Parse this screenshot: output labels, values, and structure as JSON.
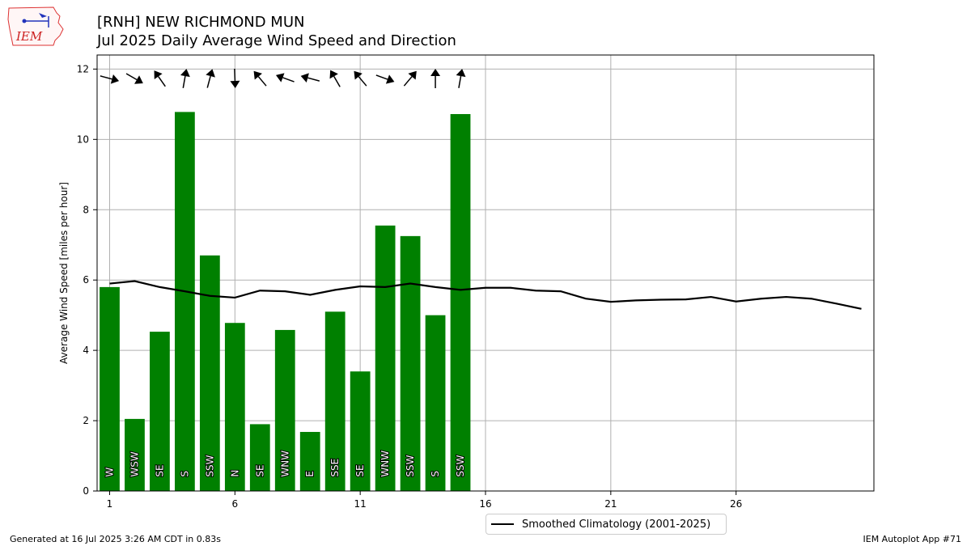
{
  "header": {
    "title_line1": "[RNH] NEW RICHMOND MUN",
    "title_line2": "Jul 2025 Daily Average Wind Speed and Direction"
  },
  "logo": {
    "text": "IEM"
  },
  "footer": {
    "left": "Generated at 16 Jul 2025 3:26 AM CDT in 0.83s",
    "right": "IEM Autoplot App #71"
  },
  "legend": {
    "climatology_label": "Smoothed Climatology (2001-2025)"
  },
  "colors": {
    "bar": "#008000",
    "line": "#000000",
    "grid": "#b0b0b0",
    "arrow": "#000000"
  },
  "chart_data": {
    "type": "bar",
    "x": [
      1,
      2,
      3,
      4,
      5,
      6,
      7,
      8,
      9,
      10,
      11,
      12,
      13,
      14,
      15
    ],
    "values": [
      5.8,
      2.05,
      4.53,
      10.78,
      6.7,
      4.78,
      1.9,
      4.58,
      1.68,
      5.1,
      3.4,
      7.55,
      7.25,
      5.0,
      10.72
    ],
    "direction_labels": [
      "W",
      "WSW",
      "SE",
      "S",
      "SSW",
      "N",
      "SE",
      "WNW",
      "E",
      "SSE",
      "SE",
      "WNW",
      "SSW",
      "S",
      "SSW"
    ],
    "arrow_angles_deg": [
      -15,
      -30,
      125,
      80,
      75,
      -88,
      130,
      160,
      165,
      120,
      130,
      -20,
      50,
      90,
      80
    ],
    "climatology": {
      "name": "Smoothed Climatology (2001-2025)",
      "x": [
        1,
        2,
        3,
        4,
        5,
        6,
        7,
        8,
        9,
        10,
        11,
        12,
        13,
        14,
        15,
        16,
        17,
        18,
        19,
        20,
        21,
        22,
        23,
        24,
        25,
        26,
        27,
        28,
        29,
        30,
        31
      ],
      "values": [
        5.9,
        5.97,
        5.8,
        5.68,
        5.55,
        5.5,
        5.7,
        5.68,
        5.58,
        5.72,
        5.82,
        5.8,
        5.9,
        5.8,
        5.72,
        5.78,
        5.78,
        5.7,
        5.68,
        5.47,
        5.38,
        5.42,
        5.44,
        5.45,
        5.52,
        5.39,
        5.47,
        5.52,
        5.47,
        5.33,
        5.18
      ]
    },
    "ylabel": "Average Wind Speed [miles per hour]",
    "xlabel": "",
    "xlim": [
      0.5,
      31.5
    ],
    "ylim": [
      0,
      12.4
    ],
    "xticks": [
      1,
      6,
      11,
      16,
      21,
      26
    ],
    "yticks": [
      0,
      2,
      4,
      6,
      8,
      10,
      12
    ],
    "grid": true,
    "legend_position": "lower-center"
  }
}
